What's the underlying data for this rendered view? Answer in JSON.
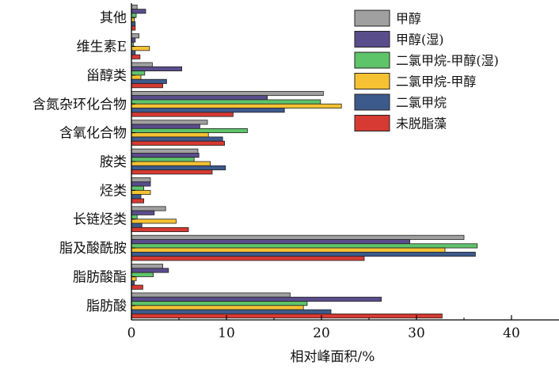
{
  "chart_data": {
    "type": "bar",
    "orientation": "horizontal",
    "categories": [
      "其他",
      "维生素E",
      "甾醇类",
      "含氮杂环化合物",
      "含氧化合物",
      "胺类",
      "烃类",
      "长链烃类",
      "脂及酸酰胺",
      "脂肪酸酯",
      "脂肪酸"
    ],
    "series": [
      {
        "name": "甲醇",
        "color": "#a0a0a0",
        "values": [
          0.6,
          0.8,
          2.2,
          20.2,
          8.0,
          7.0,
          2.0,
          3.6,
          35.0,
          3.3,
          16.7
        ]
      },
      {
        "name": "甲醇(湿)",
        "color": "#5a4d8c",
        "values": [
          1.5,
          0.4,
          5.3,
          14.3,
          7.2,
          7.1,
          2.0,
          2.4,
          29.3,
          3.9,
          26.3
        ]
      },
      {
        "name": "二氯甲烷-甲醇(湿)",
        "color": "#5ec46a",
        "values": [
          0.5,
          0.2,
          1.4,
          19.9,
          12.2,
          6.6,
          1.3,
          0.6,
          36.4,
          2.3,
          18.5
        ]
      },
      {
        "name": "二氯甲烷-甲醇",
        "color": "#f5c233",
        "values": [
          0.3,
          1.9,
          1.0,
          22.1,
          8.1,
          8.3,
          2.0,
          4.7,
          33.0,
          0.5,
          18.1
        ]
      },
      {
        "name": "二氯甲烷",
        "color": "#3d5a8c",
        "values": [
          0.4,
          0.4,
          3.7,
          16.1,
          9.6,
          9.9,
          1.0,
          1.1,
          36.2,
          0.3,
          21.0
        ]
      },
      {
        "name": "未脱脂藻",
        "color": "#d63a32",
        "values": [
          0.4,
          0.9,
          3.3,
          10.7,
          9.8,
          8.5,
          1.3,
          6.0,
          24.5,
          1.2,
          32.7
        ]
      }
    ],
    "xlabel": "相对峰面积/%",
    "ylabel": "",
    "xlim": [
      0,
      45
    ],
    "xticks": [
      0,
      10,
      20,
      30,
      40
    ],
    "grid": false,
    "legend_position": "top-right"
  }
}
